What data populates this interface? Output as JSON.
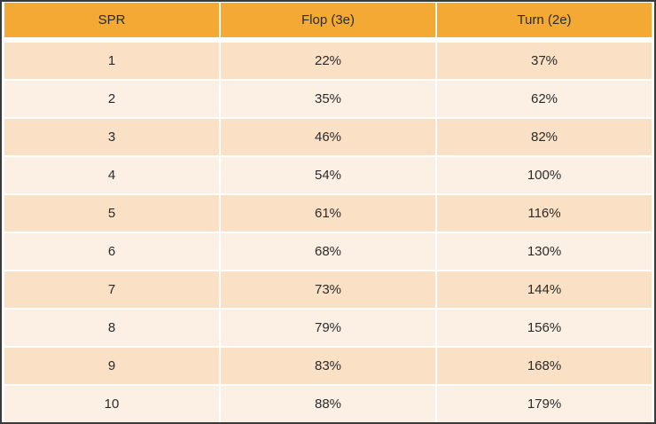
{
  "chart_data": {
    "type": "table",
    "columns": [
      "SPR",
      "Flop (3e)",
      "Turn (2e)"
    ],
    "column_keys": [
      "spr",
      "flop",
      "turn"
    ],
    "xlabel": "SPR",
    "x": [
      1,
      2,
      3,
      4,
      5,
      6,
      7,
      8,
      9,
      10
    ],
    "series": [
      {
        "name": "Flop (3e)",
        "unit": "%",
        "values": [
          22,
          35,
          46,
          54,
          61,
          68,
          73,
          79,
          83,
          88
        ]
      },
      {
        "name": "Turn (2e)",
        "unit": "%",
        "values": [
          37,
          62,
          82,
          100,
          116,
          130,
          144,
          156,
          168,
          179
        ]
      }
    ],
    "rows": [
      [
        "1",
        "22%",
        "37%"
      ],
      [
        "2",
        "35%",
        "62%"
      ],
      [
        "3",
        "46%",
        "82%"
      ],
      [
        "4",
        "54%",
        "100%"
      ],
      [
        "5",
        "61%",
        "116%"
      ],
      [
        "6",
        "68%",
        "130%"
      ],
      [
        "7",
        "73%",
        "144%"
      ],
      [
        "8",
        "79%",
        "156%"
      ],
      [
        "9",
        "83%",
        "168%"
      ],
      [
        "10",
        "88%",
        "179%"
      ]
    ],
    "legend_position": "none",
    "grid": "white 2px separators between cells, 6px band below header"
  },
  "colors": {
    "header_bg": "#F3A934",
    "row_odd_bg": "#FAE0C4",
    "row_even_bg": "#FCF0E4",
    "separator": "#FFFFFF",
    "text": "#2B2B2B",
    "frame_border": "#3A3A3A"
  }
}
